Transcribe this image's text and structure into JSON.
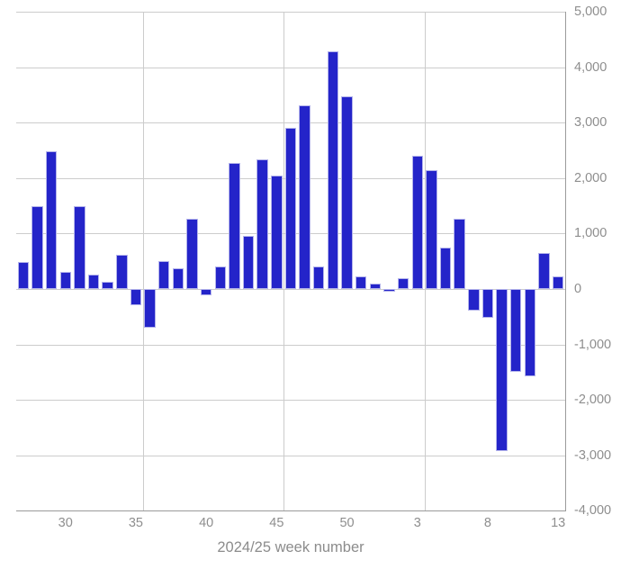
{
  "chart_data": {
    "type": "bar",
    "title": "",
    "xlabel": "2024/25 week number",
    "ylabel": "",
    "ylim": [
      -4000,
      5000
    ],
    "y_tick_step": 1000,
    "y_tick_labels": [
      "5,000",
      "4,000",
      "3,000",
      "2,000",
      "1,000",
      "0",
      "-1,000",
      "-2,000",
      "-3,000",
      "-4,000"
    ],
    "x_tick_labels": [
      "30",
      "35",
      "40",
      "45",
      "50",
      "3",
      "8",
      "13"
    ],
    "x_tick_indices": [
      3,
      8,
      13,
      18,
      23,
      28,
      33,
      38
    ],
    "categories": [
      "27",
      "28",
      "29",
      "30",
      "31",
      "32",
      "33",
      "34",
      "35",
      "36",
      "37",
      "38",
      "39",
      "40",
      "41",
      "42",
      "43",
      "44",
      "45",
      "46",
      "47",
      "48",
      "49",
      "50",
      "51",
      "52",
      "1",
      "2",
      "3",
      "4",
      "5",
      "6",
      "7",
      "8",
      "9",
      "10",
      "11",
      "12",
      "13"
    ],
    "values": [
      480,
      1490,
      2480,
      310,
      1490,
      260,
      130,
      620,
      -300,
      -700,
      510,
      380,
      1270,
      -110,
      410,
      2280,
      950,
      2340,
      2050,
      2900,
      3310,
      410,
      4290,
      3480,
      230,
      100,
      -50,
      200,
      2400,
      2140,
      750,
      1260,
      -390,
      -520,
      -2920,
      -1490,
      -1580,
      650,
      230
    ],
    "vertical_gridline_boundaries": [
      9,
      19,
      29
    ],
    "grid": true,
    "legend_position": "none",
    "colors": {
      "bar_fill": "#2424c9",
      "bar_border": "#c3c3ee",
      "gridline": "#cccccc",
      "axis_line": "#9a9a9a",
      "tick_label": "#8e8e8e",
      "axis_title": "#8c8c8c",
      "background": "#ffffff"
    }
  }
}
